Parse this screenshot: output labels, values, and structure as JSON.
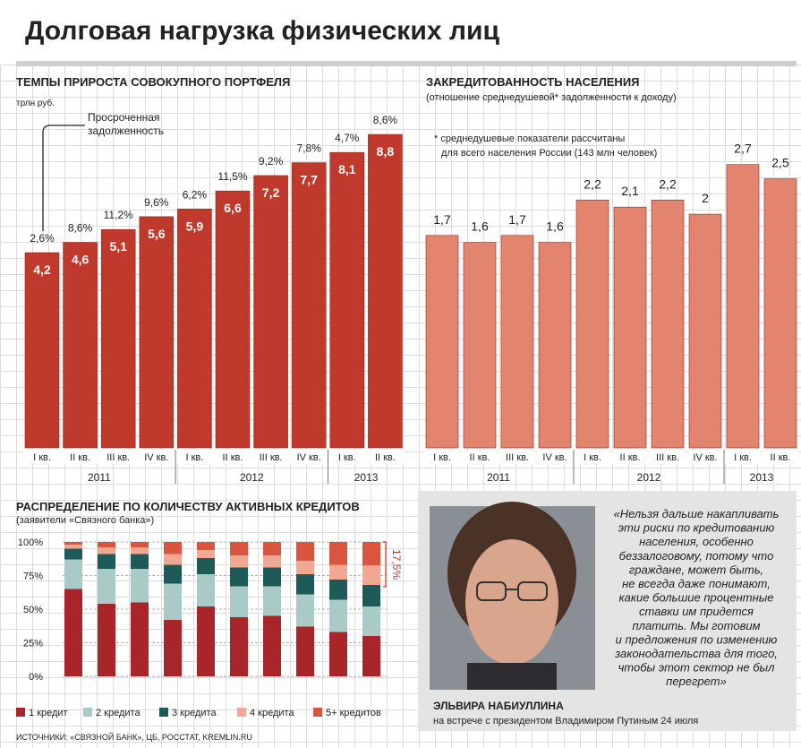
{
  "title": "Долговая нагрузка физических лиц",
  "chart_data": [
    {
      "type": "bar",
      "title": "ТЕМПЫ ПРИРОСТА СОВОКУПНОГО ПОРТФЕЛЯ",
      "unit": "трлн руб.",
      "categories": [
        "I кв.",
        "II кв.",
        "III кв.",
        "IV кв.",
        "I кв.",
        "II кв.",
        "III кв.",
        "IV кв.",
        "I кв.",
        "II кв."
      ],
      "years": [
        "2011",
        "2011",
        "2011",
        "2011",
        "2012",
        "2012",
        "2012",
        "2012",
        "2013",
        "2013"
      ],
      "values": [
        4.2,
        4.6,
        5.1,
        5.6,
        5.9,
        6.6,
        7.2,
        7.7,
        8.1,
        8.8
      ],
      "value_labels": [
        "4,2",
        "4,6",
        "5,1",
        "5,6",
        "5,9",
        "6,6",
        "7,2",
        "7,7",
        "8,1",
        "8,8"
      ],
      "color": "#c0392d",
      "ylim": [
        -3.4,
        9.5
      ],
      "overdue": {
        "name": "Просроченная задолженность",
        "values": [
          2.6,
          8.6,
          11.2,
          9.6,
          6.2,
          11.5,
          9.2,
          7.8,
          4.7,
          8.6
        ],
        "value_labels": [
          "2,6%",
          "8,6%",
          "11,2%",
          "9,6%",
          "6,2%",
          "11,5%",
          "9,2%",
          "7,8%",
          "4,7%",
          "8,6%"
        ]
      }
    },
    {
      "type": "bar",
      "title": "ЗАКРЕДИТОВАННОСТЬ НАСЕЛЕНИЯ",
      "subtitle": "(отношение среднедушевой* задолженности к доходу)",
      "note": [
        "* среднедушевые показатели рассчитаны",
        "для всего населения России (143 млн человек)"
      ],
      "categories": [
        "I кв.",
        "II кв.",
        "III кв.",
        "IV кв.",
        "I кв.",
        "II кв.",
        "III кв.",
        "IV кв.",
        "I кв.",
        "II кв."
      ],
      "years": [
        "2011",
        "2011",
        "2011",
        "2011",
        "2012",
        "2012",
        "2012",
        "2012",
        "2013",
        "2013"
      ],
      "values": [
        1.7,
        1.6,
        1.7,
        1.6,
        2.2,
        2.1,
        2.2,
        2,
        2.7,
        2.5
      ],
      "value_labels": [
        "1,7",
        "1,6",
        "1,7",
        "1,6",
        "2,2",
        "2,1",
        "2,2",
        "2",
        "2,7",
        "2,5"
      ],
      "color": "#e2846e",
      "ylim": [
        -1.3,
        3
      ]
    },
    {
      "type": "stacked_bar",
      "title": "РАСПРЕДЕЛЕНИЕ ПО КОЛИЧЕСТВУ АКТИВНЫХ КРЕДИТОВ",
      "subtitle": "(заявители «Связного банка»)",
      "ylim": [
        0,
        100
      ],
      "yticks": [
        {
          "value": 0,
          "label": "0%"
        },
        {
          "value": 25,
          "label": "25%"
        },
        {
          "value": 50,
          "label": "50%"
        },
        {
          "value": 75,
          "label": "75%"
        },
        {
          "value": 100,
          "label": "100%"
        }
      ],
      "annotation": "17,5%",
      "series": [
        {
          "name": "1 кредит",
          "color": "#a8262a",
          "values": [
            65,
            54,
            55,
            42,
            52,
            44,
            45,
            37,
            33,
            30
          ]
        },
        {
          "name": "2 кредита",
          "color": "#a9cac7",
          "values": [
            22,
            26,
            25,
            27,
            24,
            23,
            22,
            24,
            24,
            22
          ]
        },
        {
          "name": "3 кредита",
          "color": "#1e5a58",
          "values": [
            8,
            11,
            11,
            14,
            12,
            14,
            14,
            15,
            15,
            16
          ]
        },
        {
          "name": "4 кредита",
          "color": "#f1a791",
          "values": [
            3,
            5,
            5,
            8,
            6,
            9,
            9,
            10,
            11,
            14.5
          ]
        },
        {
          "name": "5+ кредитов",
          "color": "#d9553f",
          "values": [
            2,
            4,
            4,
            9,
            6,
            10,
            10,
            14,
            17,
            17.5
          ]
        }
      ]
    }
  ],
  "quote": {
    "lines": [
      "«Нельзя дальше накапливать",
      "эти риски по кредитованию",
      "населения, особенно",
      "беззалоговому, потому что",
      "граждане, может быть,",
      "не всегда даже понимают,",
      "какие большие процентные",
      "ставки им придется",
      "платить. Мы готовим",
      "и предложения по изменению",
      "законодательства для того,",
      "чтобы этот сектор не был",
      "перегрет»"
    ],
    "name": "ЭЛЬВИРА НАБИУЛЛИНА",
    "caption": "на встрече с президентом Владимиром Путиным 24 июля"
  },
  "sources": "ИСТОЧНИКИ: «СВЯЗНОЙ БАНК», ЦБ, РОССТАТ, KREMLIN.RU"
}
